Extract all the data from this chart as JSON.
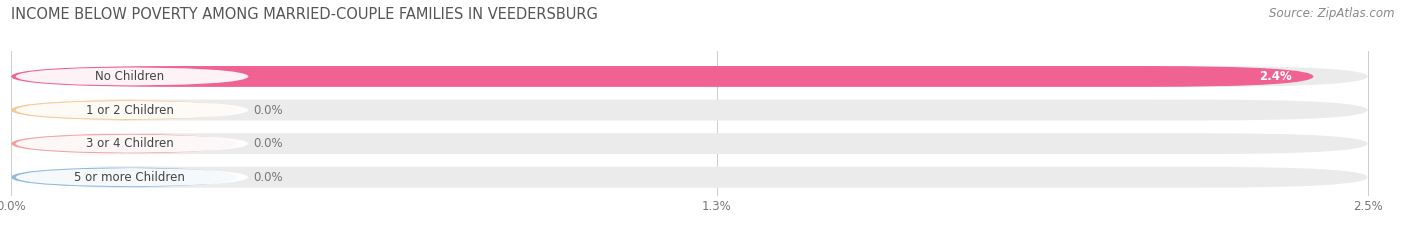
{
  "title": "INCOME BELOW POVERTY AMONG MARRIED-COUPLE FAMILIES IN VEEDERSBURG",
  "source": "Source: ZipAtlas.com",
  "categories": [
    "No Children",
    "1 or 2 Children",
    "3 or 4 Children",
    "5 or more Children"
  ],
  "values": [
    2.4,
    0.0,
    0.0,
    0.0
  ],
  "bar_colors": [
    "#F06292",
    "#F5C992",
    "#F5A0A0",
    "#90B8E0"
  ],
  "bar_bg_color": "#EBEBEB",
  "label_bg_color": "#FFFFFF",
  "x_ticks": [
    0.0,
    1.3,
    2.5
  ],
  "x_tick_labels": [
    "0.0%",
    "1.3%",
    "2.5%"
  ],
  "xlim": [
    0,
    2.5
  ],
  "title_fontsize": 10.5,
  "source_fontsize": 8.5,
  "label_fontsize": 8.5,
  "value_fontsize": 8.5,
  "background_color": "#FFFFFF",
  "grid_color": "#CCCCCC"
}
